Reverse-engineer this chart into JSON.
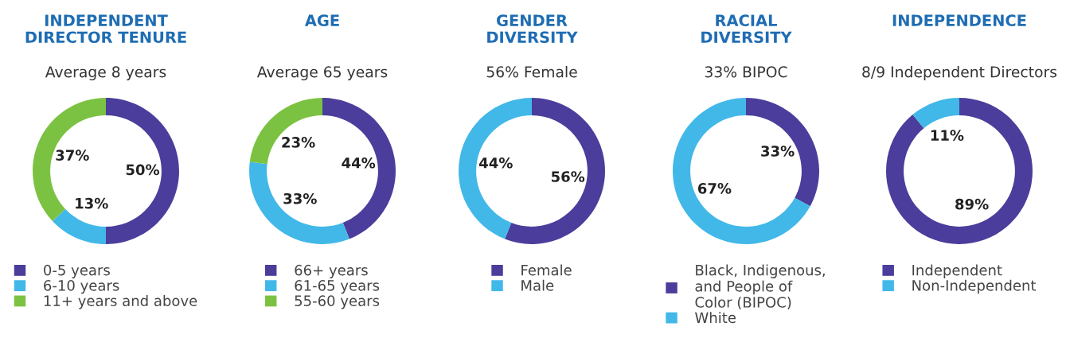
{
  "chart_data": [
    {
      "type": "donut",
      "title": "INDEPENDENT\nDIRECTOR TENURE",
      "subtitle": "Average 8 years",
      "categories": [
        "0-5 years",
        "6-10 years",
        "11+ years and above"
      ],
      "values": [
        50,
        13,
        37
      ],
      "value_labels": [
        "50%",
        "13%",
        "37%"
      ],
      "colors": [
        "#4b3d9b",
        "#41b8e8",
        "#7cc242"
      ],
      "legend": "bottom"
    },
    {
      "type": "donut",
      "title": "AGE",
      "subtitle": "Average 65 years",
      "categories": [
        "66+ years",
        "61-65 years",
        "55-60 years"
      ],
      "values": [
        44,
        33,
        23
      ],
      "value_labels": [
        "44%",
        "33%",
        "23%"
      ],
      "colors": [
        "#4b3d9b",
        "#41b8e8",
        "#7cc242"
      ],
      "legend": "bottom"
    },
    {
      "type": "donut",
      "title": "GENDER\nDIVERSITY",
      "subtitle": "56% Female",
      "categories": [
        "Female",
        "Male"
      ],
      "values": [
        56,
        44
      ],
      "value_labels": [
        "56%",
        "44%"
      ],
      "colors": [
        "#4b3d9b",
        "#41b8e8"
      ],
      "legend": "bottom"
    },
    {
      "type": "donut",
      "title": "RACIAL\nDIVERSITY",
      "subtitle": "33% BIPOC",
      "categories": [
        "Black, Indigenous,\nand People of\nColor (BIPOC)",
        "White"
      ],
      "values": [
        33,
        67
      ],
      "value_labels": [
        "33%",
        "67%"
      ],
      "colors": [
        "#4b3d9b",
        "#41b8e8"
      ],
      "legend": "bottom"
    },
    {
      "type": "donut",
      "title": "INDEPENDENCE",
      "subtitle": "8/9 Independent Directors",
      "categories": [
        "Independent",
        "Non-Independent"
      ],
      "values": [
        89,
        11
      ],
      "value_labels": [
        "89%",
        "11%"
      ],
      "colors": [
        "#4b3d9b",
        "#41b8e8"
      ],
      "legend": "bottom"
    }
  ]
}
